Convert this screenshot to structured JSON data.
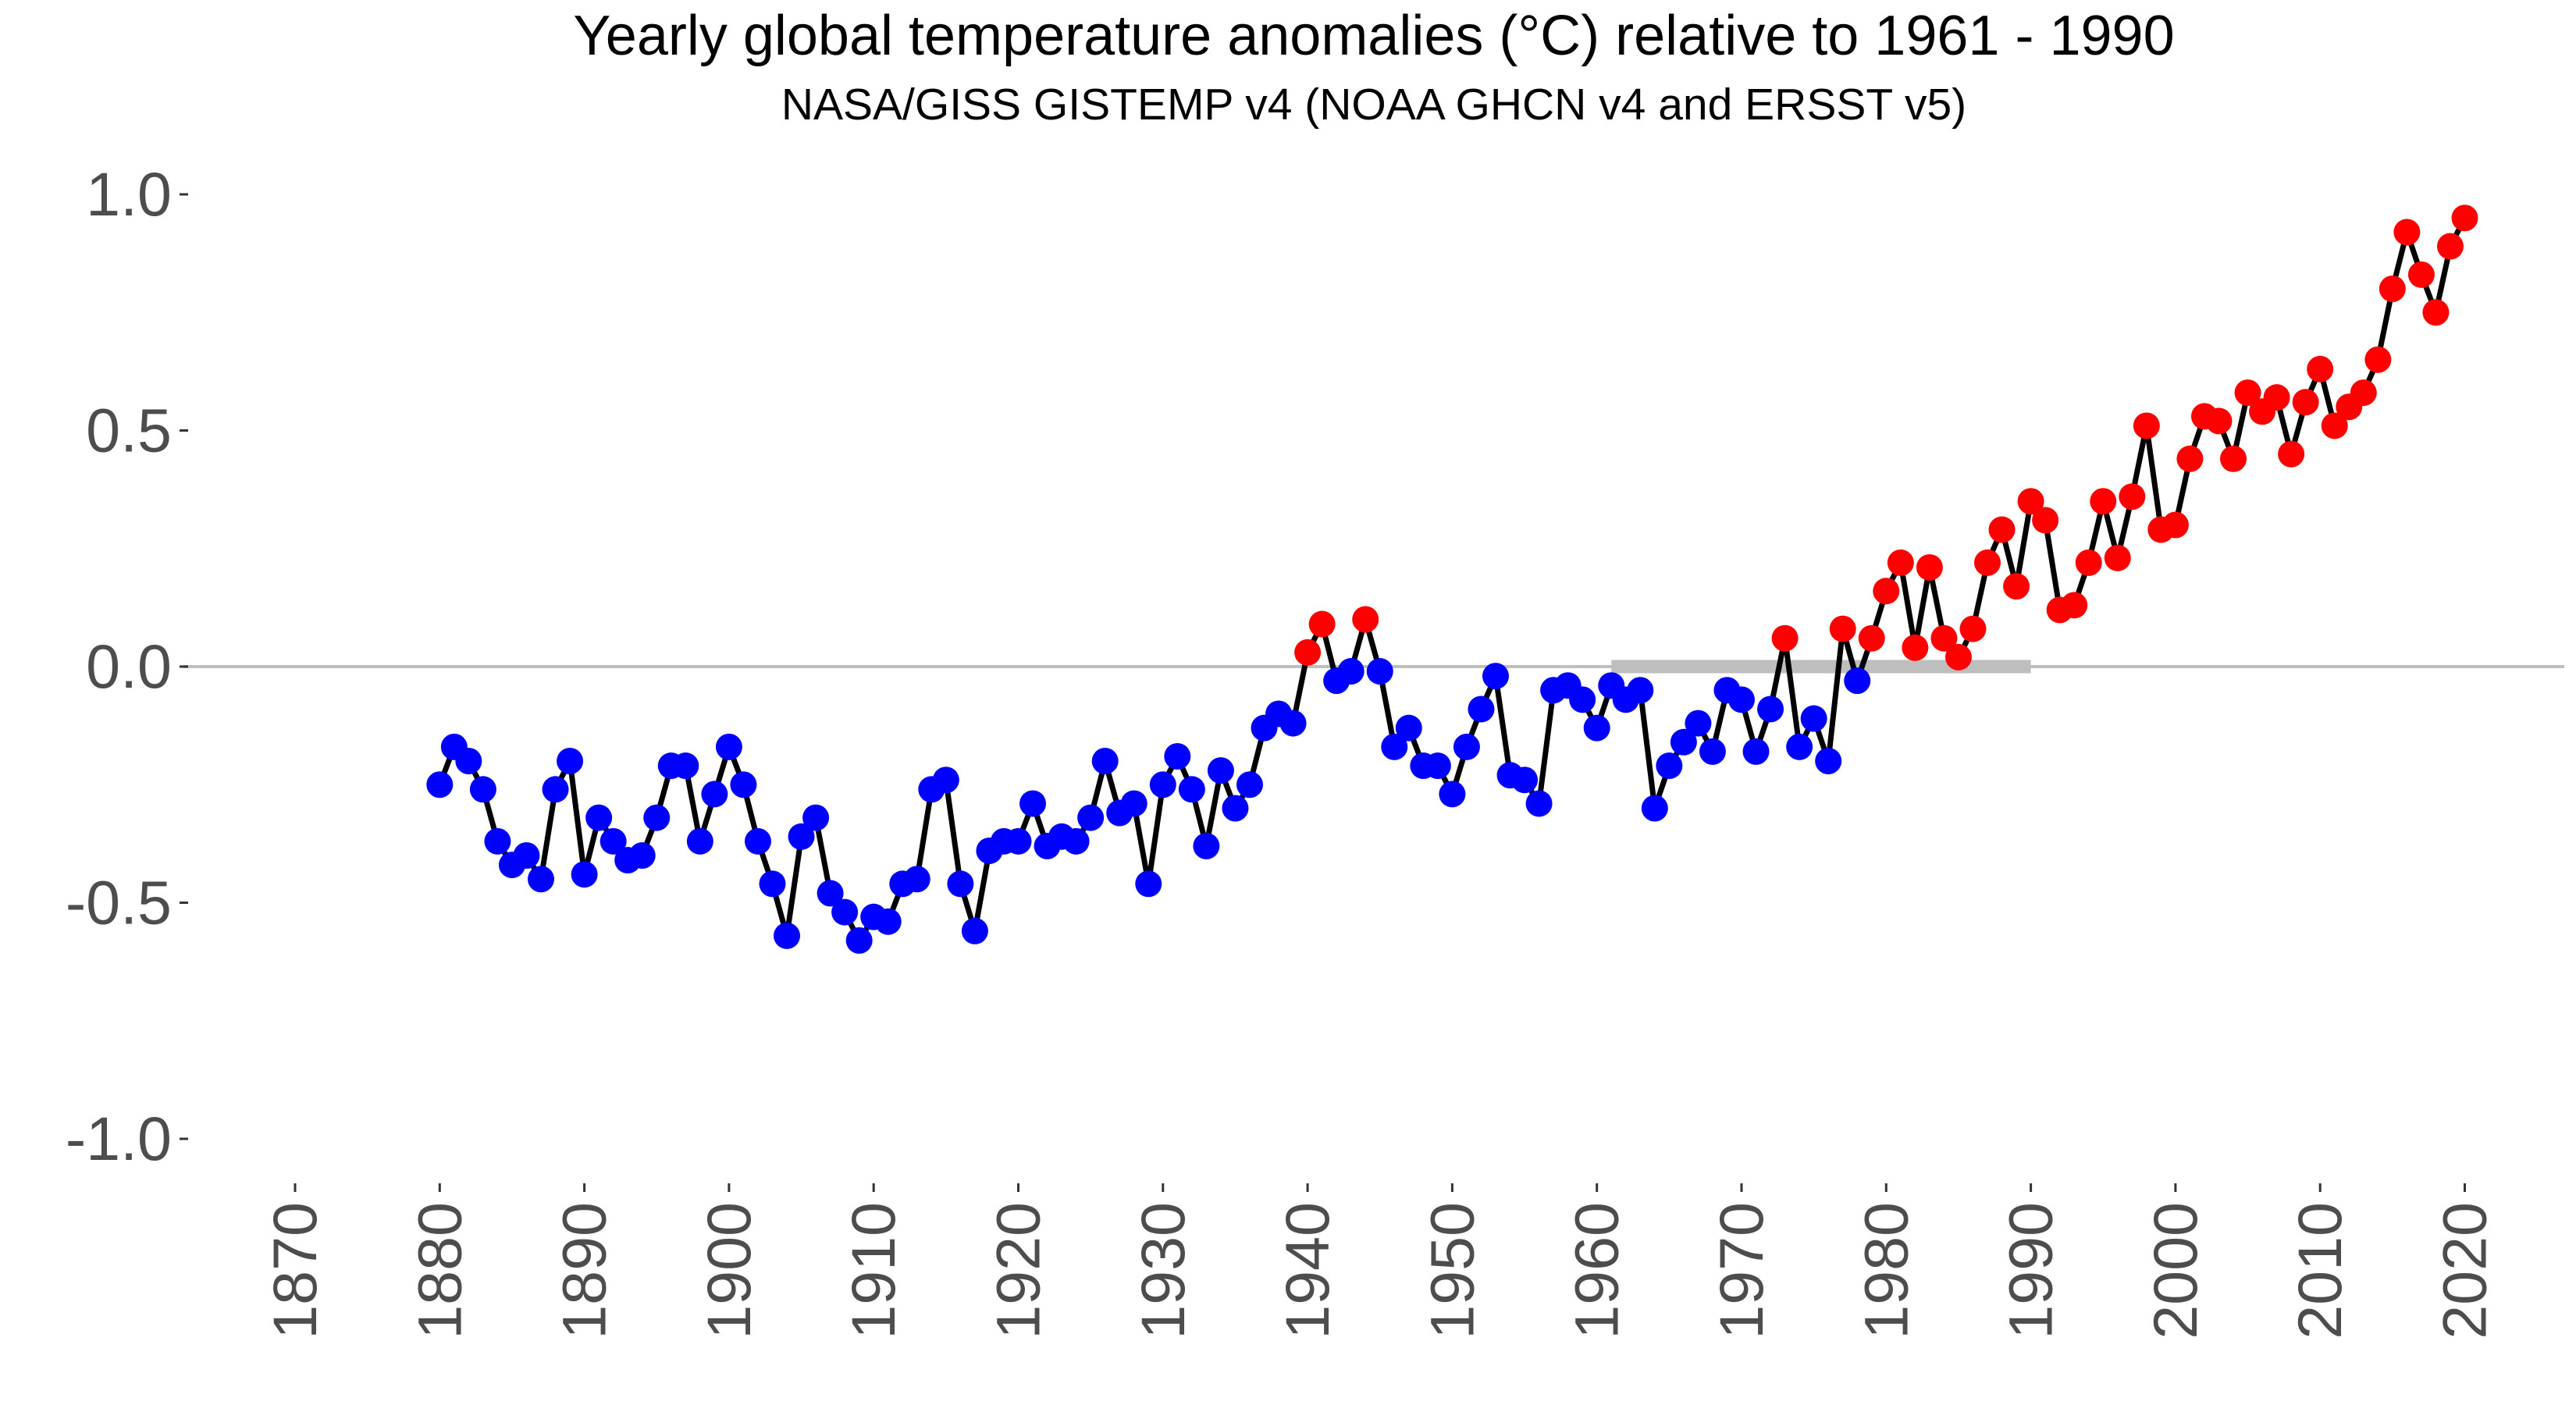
{
  "chart_data": {
    "type": "line",
    "title": "Yearly global temperature anomalies (°C)  relative to 1961 - 1990",
    "subtitle": "NASA/GISS GISTEMP v4 (NOAA GHCN v4 and ERSST v5)",
    "xlabel": "",
    "ylabel": "",
    "xlim": [
      1865,
      2023.5
    ],
    "ylim": [
      -1.0,
      1.0
    ],
    "x_ticks": [
      "1870",
      "1880",
      "1890",
      "1900",
      "1910",
      "1920",
      "1930",
      "1940",
      "1950",
      "1960",
      "1970",
      "1980",
      "1990",
      "2000",
      "2010",
      "2020"
    ],
    "y_ticks": [
      "1.0",
      "0.5",
      "0.0",
      "-0.5",
      "-1.0"
    ],
    "reference_period": [
      1961,
      1990
    ],
    "reference_line": 0.0,
    "colors": {
      "line": "#000000",
      "positive": "#ff0000",
      "negative": "#0000ff",
      "zero_line": "#bfbfbf",
      "reference_bar": "#bebebe",
      "tick_text": "#4d4d4d"
    },
    "x_start": 1880,
    "values": [
      -0.25,
      -0.17,
      -0.2,
      -0.26,
      -0.37,
      -0.42,
      -0.4,
      -0.45,
      -0.26,
      -0.2,
      -0.44,
      -0.32,
      -0.37,
      -0.41,
      -0.4,
      -0.32,
      -0.21,
      -0.21,
      -0.37,
      -0.27,
      -0.17,
      -0.25,
      -0.37,
      -0.46,
      -0.57,
      -0.36,
      -0.32,
      -0.48,
      -0.52,
      -0.58,
      -0.53,
      -0.54,
      -0.46,
      -0.45,
      -0.26,
      -0.24,
      -0.46,
      -0.56,
      -0.39,
      -0.37,
      -0.37,
      -0.29,
      -0.38,
      -0.36,
      -0.37,
      -0.32,
      -0.2,
      -0.31,
      -0.29,
      -0.46,
      -0.25,
      -0.19,
      -0.26,
      -0.38,
      -0.22,
      -0.3,
      -0.25,
      -0.13,
      -0.1,
      -0.12,
      0.03,
      0.09,
      -0.03,
      -0.01,
      0.1,
      -0.01,
      -0.17,
      -0.13,
      -0.21,
      -0.21,
      -0.27,
      -0.17,
      -0.09,
      -0.02,
      -0.23,
      -0.24,
      -0.29,
      -0.05,
      -0.04,
      -0.07,
      -0.13,
      -0.04,
      -0.07,
      -0.05,
      -0.3,
      -0.21,
      -0.16,
      -0.12,
      -0.18,
      -0.05,
      -0.07,
      -0.18,
      -0.09,
      0.06,
      -0.17,
      -0.11,
      -0.2,
      0.08,
      -0.03,
      0.06,
      0.16,
      0.22,
      0.04,
      0.21,
      0.06,
      0.02,
      0.08,
      0.22,
      0.29,
      0.17,
      0.35,
      0.31,
      0.12,
      0.13,
      0.22,
      0.35,
      0.23,
      0.36,
      0.51,
      0.29,
      0.3,
      0.44,
      0.53,
      0.52,
      0.44,
      0.58,
      0.54,
      0.57,
      0.45,
      0.56,
      0.63,
      0.51,
      0.55,
      0.58,
      0.65,
      0.8,
      0.92,
      0.83,
      0.75,
      0.89,
      0.95
    ]
  }
}
